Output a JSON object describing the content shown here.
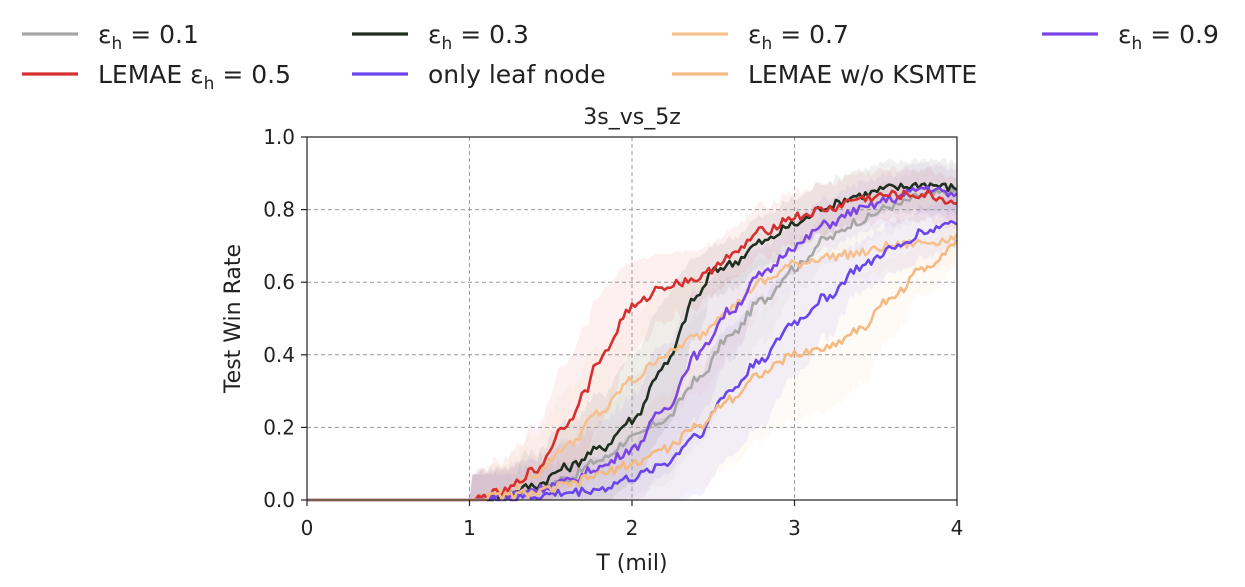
{
  "chart_data": {
    "type": "line",
    "title": "3s_vs_5z",
    "xlabel": "T (mil)",
    "ylabel": "Test Win Rate",
    "xlim": [
      0,
      4
    ],
    "ylim": [
      0,
      1.0
    ],
    "xticks": [
      "0",
      "1",
      "2",
      "3",
      "4"
    ],
    "yticks": [
      "0.0",
      "0.2",
      "0.4",
      "0.6",
      "0.8",
      "1.0"
    ],
    "grid": true,
    "legend_position": "top, above plot",
    "series": [
      {
        "name": "ε_h = 0.1",
        "legend_main": "ε",
        "legend_sub": "h",
        "legend_rest": " = 0.1",
        "color": "#a6a6a6",
        "x": [
          0,
          1.0,
          1.2,
          1.4,
          1.6,
          1.8,
          2.0,
          2.2,
          2.4,
          2.6,
          2.8,
          3.0,
          3.2,
          3.4,
          3.6,
          3.8,
          4.0
        ],
        "y": [
          0,
          0,
          0.01,
          0.03,
          0.06,
          0.11,
          0.17,
          0.22,
          0.33,
          0.45,
          0.55,
          0.64,
          0.72,
          0.77,
          0.81,
          0.84,
          0.85
        ]
      },
      {
        "name": "ε_h = 0.3",
        "legend_main": "ε",
        "legend_sub": "h",
        "legend_rest": " = 0.3",
        "color": "#1f2e1f",
        "x": [
          0,
          1.0,
          1.2,
          1.4,
          1.6,
          1.8,
          2.0,
          2.2,
          2.4,
          2.5,
          2.6,
          2.8,
          3.0,
          3.2,
          3.4,
          3.6,
          3.8,
          4.0
        ],
        "y": [
          0,
          0,
          0.01,
          0.04,
          0.09,
          0.14,
          0.22,
          0.37,
          0.56,
          0.63,
          0.65,
          0.71,
          0.76,
          0.81,
          0.84,
          0.86,
          0.87,
          0.86
        ]
      },
      {
        "name": "ε_h = 0.7",
        "legend_main": "ε",
        "legend_sub": "h",
        "legend_rest": " = 0.7",
        "color": "#f6c08e",
        "x": [
          0,
          1.0,
          1.2,
          1.4,
          1.6,
          1.8,
          2.0,
          2.2,
          2.4,
          2.6,
          2.8,
          3.0,
          3.2,
          3.4,
          3.6,
          3.8,
          4.0
        ],
        "y": [
          0,
          0,
          0.02,
          0.07,
          0.15,
          0.24,
          0.33,
          0.4,
          0.45,
          0.53,
          0.6,
          0.65,
          0.67,
          0.68,
          0.7,
          0.71,
          0.72
        ]
      },
      {
        "name": "ε_h = 0.9",
        "legend_main": "ε",
        "legend_sub": "h",
        "legend_rest": " = 0.9",
        "color": "#7b45e6",
        "x": [
          0,
          1.0,
          1.2,
          1.4,
          1.6,
          1.8,
          2.0,
          2.2,
          2.4,
          2.6,
          2.8,
          3.0,
          3.2,
          3.4,
          3.6,
          3.8,
          4.0
        ],
        "y": [
          0,
          0,
          0.01,
          0.03,
          0.05,
          0.09,
          0.14,
          0.25,
          0.4,
          0.52,
          0.62,
          0.7,
          0.76,
          0.8,
          0.83,
          0.86,
          0.84
        ]
      },
      {
        "name": "LEMAE ε_h = 0.5",
        "legend_main": "LEMAE ε",
        "legend_sub": "h",
        "legend_rest": " = 0.5",
        "color": "#d62f2f",
        "x": [
          0,
          1.0,
          1.2,
          1.4,
          1.6,
          1.7,
          1.8,
          2.0,
          2.2,
          2.4,
          2.6,
          2.8,
          3.0,
          3.2,
          3.4,
          3.6,
          3.8,
          4.0
        ],
        "y": [
          0,
          0,
          0.02,
          0.08,
          0.21,
          0.29,
          0.39,
          0.53,
          0.59,
          0.61,
          0.67,
          0.74,
          0.78,
          0.8,
          0.83,
          0.84,
          0.84,
          0.82
        ]
      },
      {
        "name": "only leaf node",
        "legend_main": "only leaf node",
        "legend_sub": "",
        "legend_rest": "",
        "color": "#6a44ec",
        "x": [
          0,
          1.0,
          1.2,
          1.4,
          1.6,
          1.8,
          2.0,
          2.2,
          2.4,
          2.6,
          2.8,
          3.0,
          3.2,
          3.4,
          3.6,
          3.8,
          4.0
        ],
        "y": [
          0,
          0,
          0,
          0.01,
          0.02,
          0.03,
          0.06,
          0.1,
          0.18,
          0.3,
          0.39,
          0.49,
          0.56,
          0.64,
          0.69,
          0.74,
          0.77
        ]
      },
      {
        "name": "LEMAE w/o KSMTE",
        "legend_main": "LEMAE w/o KSMTE",
        "legend_sub": "",
        "legend_rest": "",
        "color": "#f3ba82",
        "x": [
          0,
          1.0,
          1.2,
          1.4,
          1.6,
          1.8,
          2.0,
          2.2,
          2.4,
          2.6,
          2.8,
          3.0,
          3.2,
          3.4,
          3.6,
          3.8,
          4.0
        ],
        "y": [
          0,
          0,
          0.01,
          0.02,
          0.04,
          0.07,
          0.1,
          0.14,
          0.2,
          0.28,
          0.35,
          0.4,
          0.42,
          0.47,
          0.56,
          0.64,
          0.71
        ]
      }
    ]
  }
}
